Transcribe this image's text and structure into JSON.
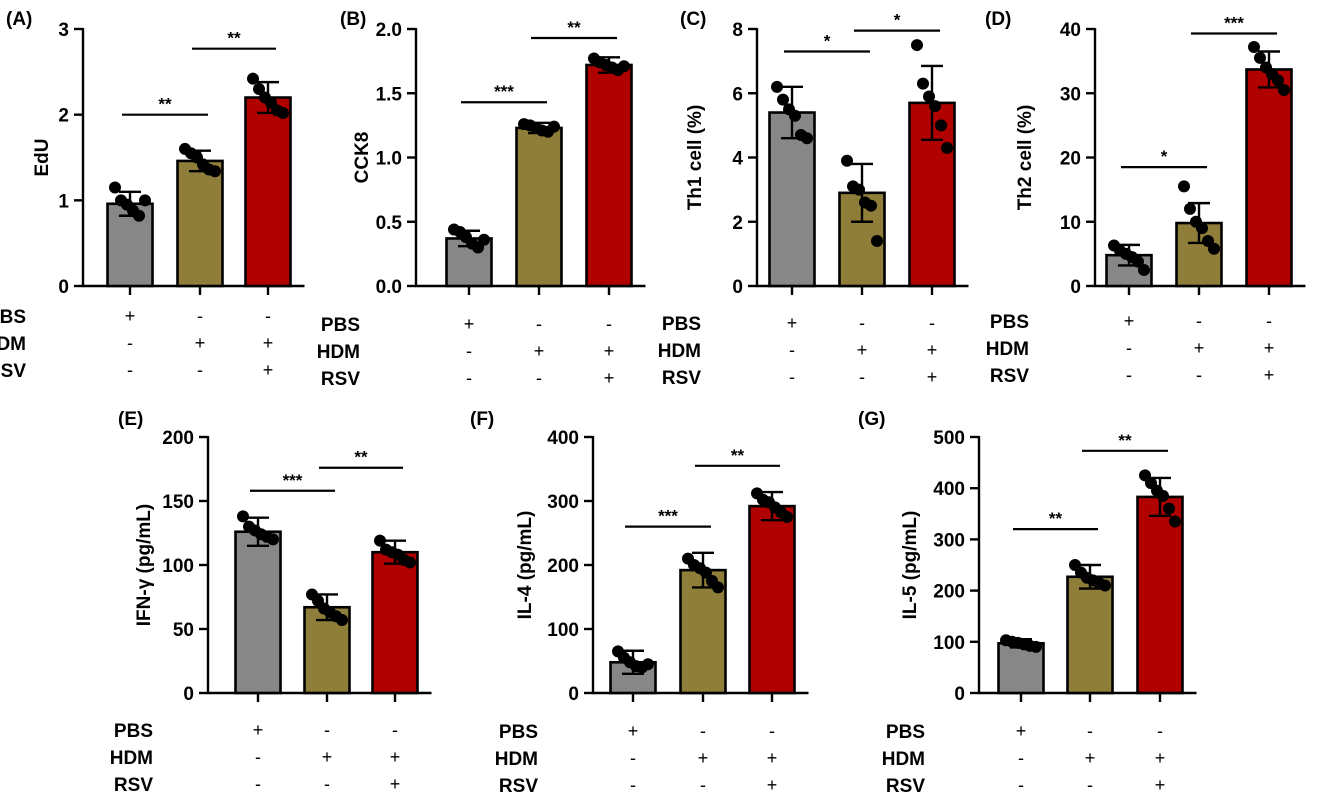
{
  "colors": {
    "PBS": "#878787",
    "HDM": "#8f7d3a",
    "HDM_RSV": "#b00000"
  },
  "treatments": {
    "rows": [
      "PBS",
      "HDM",
      "RSV"
    ],
    "groups": [
      {
        "PBS": "+",
        "HDM": "-",
        "RSV": "-"
      },
      {
        "PBS": "-",
        "HDM": "+",
        "RSV": "-"
      },
      {
        "PBS": "-",
        "HDM": "+",
        "RSV": "+"
      }
    ]
  },
  "chart_data": [
    {
      "type": "bar",
      "panel": "(A)",
      "ylabel": "EdU",
      "ylim": [
        0,
        3
      ],
      "yticks": [
        "0",
        "1",
        "2",
        "3"
      ],
      "values": [
        0.96,
        1.46,
        2.2
      ],
      "sd": [
        0.14,
        0.12,
        0.18
      ],
      "points": [
        [
          1.15,
          1.0,
          0.95,
          0.88,
          0.82,
          1.0
        ],
        [
          1.6,
          1.55,
          1.5,
          1.42,
          1.36,
          1.34
        ],
        [
          2.42,
          2.3,
          2.2,
          2.14,
          2.05,
          2.02
        ]
      ],
      "significance": [
        {
          "from": 0,
          "to": 1,
          "label": "**",
          "level": 2.0
        },
        {
          "from": 1,
          "to": 2,
          "label": "**",
          "level": 2.77
        }
      ]
    },
    {
      "type": "bar",
      "panel": "(B)",
      "ylabel": "CCK8",
      "ylim": [
        0,
        2
      ],
      "yticks": [
        "0.0",
        "0.5",
        "1.0",
        "1.5",
        "2.0"
      ],
      "values": [
        0.37,
        1.23,
        1.72
      ],
      "sd": [
        0.06,
        0.04,
        0.06
      ],
      "points": [
        [
          0.44,
          0.42,
          0.38,
          0.33,
          0.3,
          0.36
        ],
        [
          1.26,
          1.25,
          1.23,
          1.21,
          1.2,
          1.24
        ],
        [
          1.77,
          1.74,
          1.72,
          1.7,
          1.68,
          1.71
        ]
      ],
      "significance": [
        {
          "from": 0,
          "to": 1,
          "label": "***",
          "level": 1.43
        },
        {
          "from": 1,
          "to": 2,
          "label": "**",
          "level": 1.93
        }
      ]
    },
    {
      "type": "bar",
      "panel": "(C)",
      "ylabel": "Th1 cell (%)",
      "ylim": [
        0,
        8
      ],
      "yticks": [
        "0",
        "2",
        "4",
        "6",
        "8"
      ],
      "values": [
        5.4,
        2.9,
        5.7
      ],
      "sd": [
        0.8,
        0.9,
        1.15
      ],
      "points": [
        [
          6.2,
          5.8,
          5.5,
          5.3,
          4.7,
          4.6
        ],
        [
          3.9,
          3.1,
          3.0,
          2.6,
          2.5,
          1.4
        ],
        [
          7.5,
          6.3,
          5.9,
          5.6,
          5.0,
          4.3
        ]
      ],
      "significance": [
        {
          "from": 0,
          "to": 1,
          "label": "*",
          "level": 7.3
        },
        {
          "from": 1,
          "to": 2,
          "label": "*",
          "level": 7.95
        }
      ]
    },
    {
      "type": "bar",
      "panel": "(D)",
      "ylabel": "Th2 cell (%)",
      "ylim": [
        0,
        40
      ],
      "yticks": [
        "0",
        "10",
        "20",
        "30",
        "40"
      ],
      "values": [
        4.8,
        9.8,
        33.7
      ],
      "sd": [
        1.6,
        3.1,
        2.8
      ],
      "points": [
        [
          6.3,
          5.5,
          5.0,
          4.5,
          3.8,
          2.5
        ],
        [
          15.5,
          12.0,
          10.0,
          9.0,
          7.0,
          5.8
        ],
        [
          37.2,
          35.5,
          34.0,
          33.0,
          32.0,
          30.5
        ]
      ],
      "significance": [
        {
          "from": 0,
          "to": 1,
          "label": "*",
          "level": 18.5
        },
        {
          "from": 1,
          "to": 2,
          "label": "***",
          "level": 39.3
        }
      ]
    },
    {
      "type": "bar",
      "panel": "(E)",
      "ylabel": "IFN-γ (pg/mL)",
      "ylim": [
        0,
        200
      ],
      "yticks": [
        "0",
        "50",
        "100",
        "150",
        "200"
      ],
      "values": [
        126,
        67,
        110
      ],
      "sd": [
        11,
        10,
        9
      ],
      "points": [
        [
          138,
          130,
          127,
          124,
          122,
          120
        ],
        [
          77,
          72,
          66,
          63,
          60,
          57
        ],
        [
          119,
          112,
          110,
          108,
          104,
          102
        ]
      ],
      "significance": [
        {
          "from": 0,
          "to": 1,
          "label": "***",
          "level": 158
        },
        {
          "from": 1,
          "to": 2,
          "label": "**",
          "level": 176
        }
      ]
    },
    {
      "type": "bar",
      "panel": "(F)",
      "ylabel": "IL-4 (pg/mL)",
      "ylim": [
        0,
        400
      ],
      "yticks": [
        "0",
        "100",
        "200",
        "300",
        "400"
      ],
      "values": [
        48,
        192,
        292
      ],
      "sd": [
        18,
        27,
        22
      ],
      "points": [
        [
          65,
          55,
          48,
          42,
          40,
          45
        ],
        [
          210,
          200,
          195,
          188,
          175,
          165
        ],
        [
          312,
          302,
          298,
          290,
          282,
          275
        ]
      ],
      "significance": [
        {
          "from": 0,
          "to": 1,
          "label": "***",
          "level": 260
        },
        {
          "from": 1,
          "to": 2,
          "label": "**",
          "level": 355
        }
      ]
    },
    {
      "type": "bar",
      "panel": "(G)",
      "ylabel": "IL-5 (pg/mL)",
      "ylim": [
        0,
        500
      ],
      "yticks": [
        "0",
        "100",
        "200",
        "300",
        "400",
        "500"
      ],
      "values": [
        97,
        227,
        383
      ],
      "sd": [
        8,
        23,
        37
      ],
      "points": [
        [
          103,
          100,
          98,
          95,
          92,
          90
        ],
        [
          250,
          235,
          225,
          220,
          215,
          210
        ],
        [
          425,
          410,
          395,
          385,
          360,
          335
        ]
      ],
      "significance": [
        {
          "from": 0,
          "to": 1,
          "label": "**",
          "level": 320
        },
        {
          "from": 1,
          "to": 2,
          "label": "**",
          "level": 473
        }
      ]
    }
  ]
}
